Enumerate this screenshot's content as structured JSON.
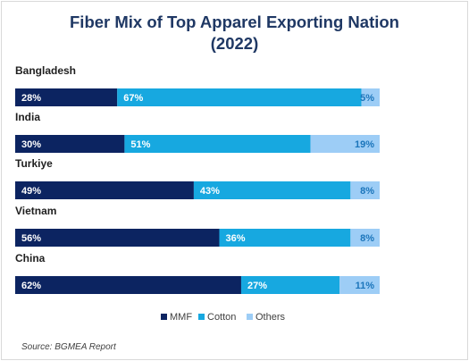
{
  "chart_data": {
    "type": "bar",
    "orientation": "horizontal",
    "stacked": true,
    "title_line1": "Fiber Mix of Top Apparel Exporting Nation",
    "title_line2": "(2022)",
    "categories": [
      "Bangladesh",
      "India",
      "Turkiye",
      "Vietnam",
      "China"
    ],
    "series": [
      {
        "name": "MMF",
        "values": [
          28,
          30,
          49,
          56,
          62
        ],
        "labels": [
          "28%",
          "30%",
          "49%",
          "56%",
          "62%"
        ],
        "color": "#0c2461"
      },
      {
        "name": "Cotton",
        "values": [
          67,
          51,
          43,
          36,
          27
        ],
        "labels": [
          "67%",
          "51%",
          "43%",
          "36%",
          "27%"
        ],
        "color": "#17a8e0"
      },
      {
        "name": "Others",
        "values": [
          5,
          19,
          8,
          8,
          11
        ],
        "labels": [
          "5%",
          "19%",
          "8%",
          "8%",
          "11%"
        ],
        "color": "#9dcdf6"
      }
    ],
    "xlim": [
      0,
      100
    ],
    "legend_position": "bottom",
    "grid": false,
    "source": "Source: BGMEA Report"
  }
}
